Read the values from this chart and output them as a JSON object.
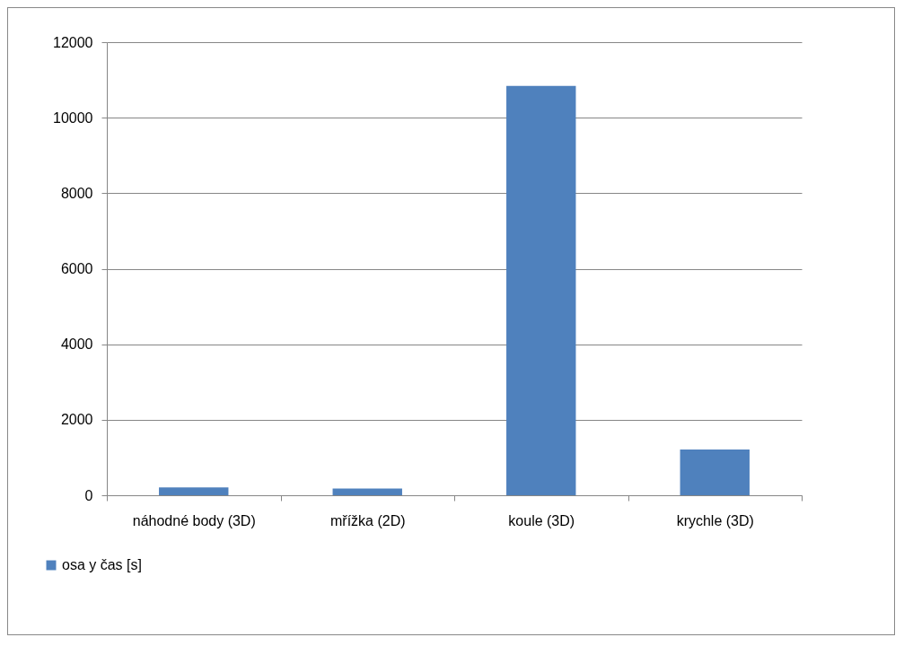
{
  "chart_data": {
    "type": "bar",
    "categories": [
      "náhodné body (3D)",
      "mřížka  (2D)",
      "koule (3D)",
      "krychle (3D)"
    ],
    "series": [
      {
        "name": "osa y čas [s]",
        "color": "#4f81bd",
        "values": [
          210,
          180,
          10840,
          1210
        ]
      }
    ],
    "ylim": [
      0,
      12000
    ],
    "yticks": [
      0,
      2000,
      4000,
      6000,
      8000,
      10000,
      12000
    ],
    "grid": "y",
    "legend": "bottom left"
  }
}
